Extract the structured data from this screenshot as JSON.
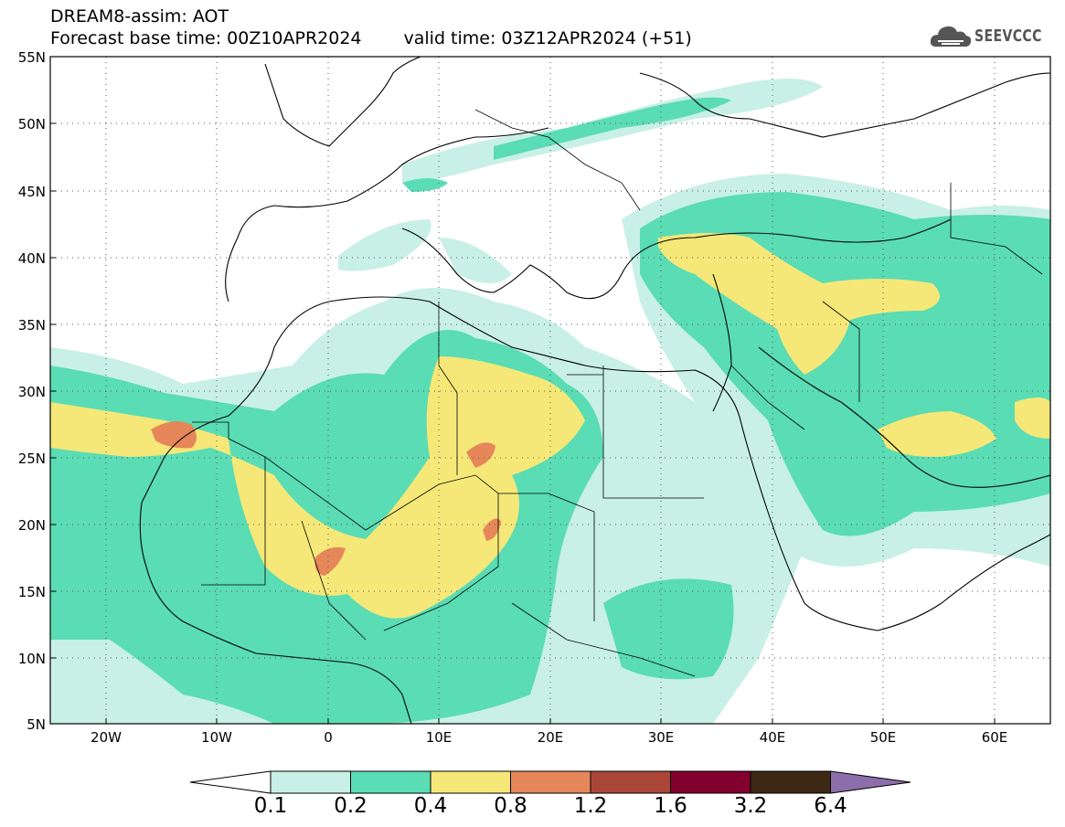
{
  "header": {
    "line1": "DREAM8-assim: AOT",
    "base_time": "Forecast base time: 00Z10APR2024",
    "valid_time": "valid time: 03Z12APR2024 (+51)"
  },
  "logo": {
    "text": "SEEVCCC",
    "icon": "cloud-logo-icon",
    "color": "#555555"
  },
  "axes": {
    "lat_labels": [
      "55N",
      "50N",
      "45N",
      "40N",
      "35N",
      "30N",
      "25N",
      "20N",
      "15N",
      "10N",
      "5N"
    ],
    "lon_labels": [
      "20W",
      "10W",
      "0",
      "10E",
      "20E",
      "30E",
      "40E",
      "50E",
      "60E"
    ]
  },
  "colorbar": {
    "labels": [
      "0.1",
      "0.2",
      "0.4",
      "0.8",
      "1.2",
      "1.6",
      "3.2",
      "6.4"
    ],
    "colors": [
      "#ffffff",
      "#c8f0e6",
      "#5adcb4",
      "#f5e878",
      "#e6875a",
      "#aa4637",
      "#82002d",
      "#3c2814",
      "#8c6eaa"
    ]
  }
}
